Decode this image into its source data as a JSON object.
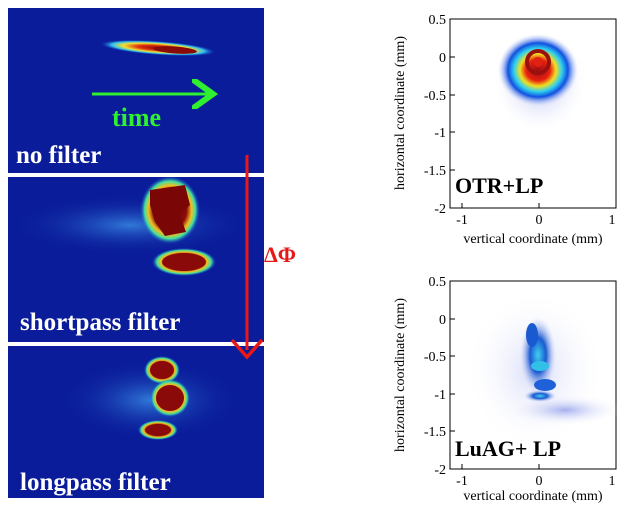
{
  "left_panels": [
    {
      "label": "no filter"
    },
    {
      "label": "shortpass filter"
    },
    {
      "label": "longpass filter"
    }
  ],
  "time_label": "time",
  "delta_label": "ΔΦ",
  "plots": [
    {
      "box_label": "OTR+LP",
      "xlabel": "vertical coordinate (mm)",
      "ylabel": "horizontal coordinate (mm)",
      "xticks": [
        "-1",
        "0",
        "1"
      ],
      "yticks": [
        "0.5",
        "0",
        "-0.5",
        "-1",
        "-1.5",
        "-2"
      ]
    },
    {
      "box_label": "LuAG+ LP",
      "xlabel": "vertical coordinate (mm)",
      "ylabel": "horizontal coordinate (mm)",
      "xticks": [
        "-1",
        "0",
        "1"
      ],
      "yticks": [
        "0.5",
        "0",
        "-0.5",
        "-1",
        "-1.5",
        "-2"
      ]
    }
  ],
  "colors": {
    "panel_bg": "#0a1c9a",
    "arrow_time": "#2ef02e",
    "arrow_delta": "#e81818",
    "beam_core": "#8a0a0a"
  }
}
